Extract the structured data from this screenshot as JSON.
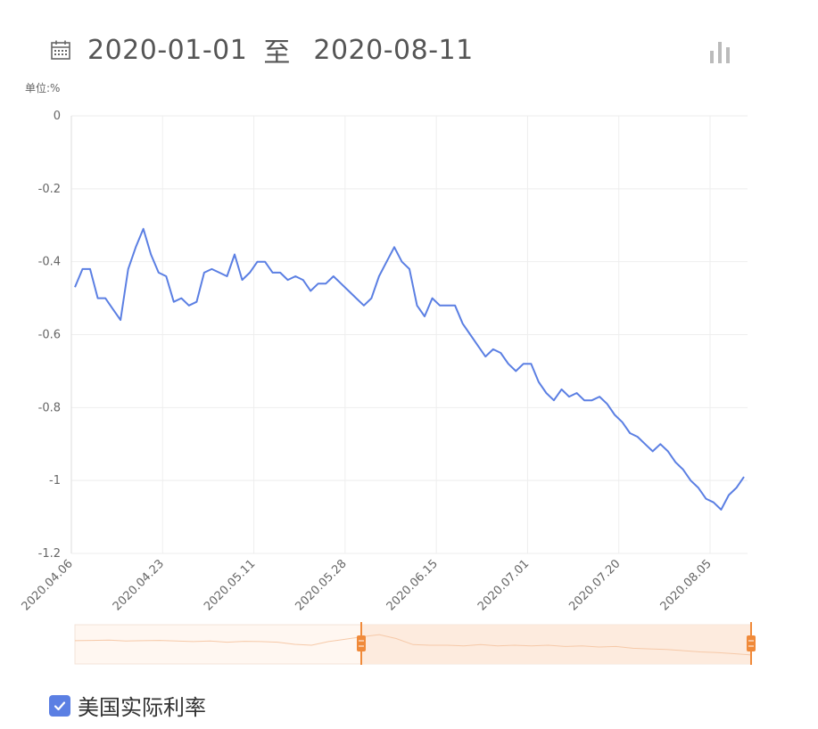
{
  "header": {
    "start_date": "2020-01-01",
    "separator": "至",
    "end_date": "2020-08-11",
    "calendar_icon": "calendar-icon",
    "chart_toggle_icon": "bar-chart-icon"
  },
  "unit_label": "单位:%",
  "legend": {
    "label": "美国实际利率",
    "checked": true,
    "color": "#5b7fe3"
  },
  "colors": {
    "line": "#5b7fe3",
    "grid": "#eeeeee",
    "slider_fill": "#fde9dc",
    "slider_handle": "#f08a3a"
  },
  "chart_data": {
    "type": "line",
    "ylabel": "单位:%",
    "ylim": [
      -1.2,
      0
    ],
    "yticks": [
      "0",
      "-0.2",
      "-0.4",
      "-0.6",
      "-0.8",
      "-1",
      "-1.2"
    ],
    "xticks": [
      "2020.04.06",
      "2020.04.23",
      "2020.05.11",
      "2020.05.28",
      "2020.06.15",
      "2020.07.01",
      "2020.07.20",
      "2020.08.05"
    ],
    "grid": true,
    "legend_position": "bottom-left",
    "series": [
      {
        "name": "美国实际利率",
        "values": [
          -0.47,
          -0.42,
          -0.42,
          -0.5,
          -0.5,
          -0.53,
          -0.56,
          -0.42,
          -0.36,
          -0.31,
          -0.38,
          -0.43,
          -0.44,
          -0.51,
          -0.5,
          -0.52,
          -0.51,
          -0.43,
          -0.42,
          -0.43,
          -0.44,
          -0.38,
          -0.45,
          -0.43,
          -0.4,
          -0.4,
          -0.43,
          -0.43,
          -0.45,
          -0.44,
          -0.45,
          -0.48,
          -0.46,
          -0.46,
          -0.44,
          -0.46,
          -0.48,
          -0.5,
          -0.52,
          -0.5,
          -0.44,
          -0.4,
          -0.36,
          -0.4,
          -0.42,
          -0.52,
          -0.55,
          -0.5,
          -0.52,
          -0.52,
          -0.52,
          -0.57,
          -0.6,
          -0.63,
          -0.66,
          -0.64,
          -0.65,
          -0.68,
          -0.7,
          -0.68,
          -0.68,
          -0.73,
          -0.76,
          -0.78,
          -0.75,
          -0.77,
          -0.76,
          -0.78,
          -0.78,
          -0.77,
          -0.79,
          -0.82,
          -0.84,
          -0.87,
          -0.88,
          -0.9,
          -0.92,
          -0.9,
          -0.92,
          -0.95,
          -0.97,
          -1.0,
          -1.02,
          -1.05,
          -1.06,
          -1.08,
          -1.04,
          -1.02,
          -0.99
        ]
      }
    ],
    "zoom_range": [
      "2020-01-01",
      "2020-08-11"
    ]
  }
}
